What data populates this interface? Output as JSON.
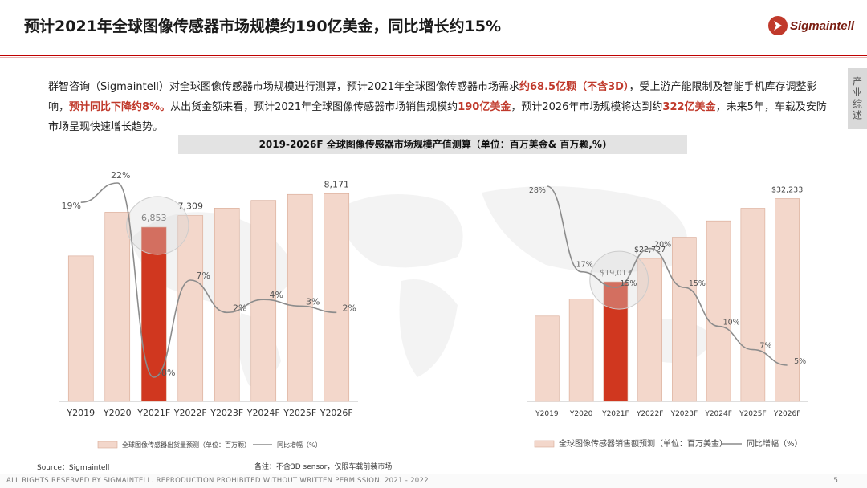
{
  "header": {
    "title": "预计2021年全球图像传感器市场规模约190亿美金，同比增长约15%",
    "logo_text": "Sigmaintell",
    "side_tab": "产业综述"
  },
  "intro": {
    "p1": "群智咨询（Sigmaintell）对全球图像传感器市场规模进行测算，预计2021年全球图像传感器市场需求",
    "h1": "约68.5亿颗（不含3D）",
    "p2": "，受上游产能限制及智能手机库存调整影响，",
    "h2": "预计同比下降约8%。",
    "p3": "从出货金额来看，预计2021年全球图像传感器市场销售规模约",
    "h3": "190亿美金",
    "p4": "，预计2026年市场规模将达到约",
    "h4": "322亿美金",
    "p5": "，未来5年，车载及安防市场呈现快速增长趋势。"
  },
  "chart_section_title": "2019-2026F 全球图像传感器市场规模产值测算（单位：百万美金& 百万颗,%)",
  "chart_data": [
    {
      "type": "bar",
      "categories": [
        "Y2019",
        "Y2020",
        "Y2021F",
        "Y2022F",
        "Y2023F",
        "Y2024F",
        "Y2025F",
        "Y2026F"
      ],
      "series": [
        {
          "name": "全球图像传感器出货量预测（单位：百万颗）",
          "values": [
            5720,
            7440,
            6853,
            7309,
            7600,
            7905,
            8140,
            8171
          ],
          "color": "#f3d7cb",
          "highlight_index": 2,
          "highlight_color": "#d0371f"
        },
        {
          "name": "同比增幅（%）",
          "type": "line",
          "values": [
            19,
            22,
            -8,
            7,
            2,
            4,
            3,
            2
          ],
          "color": "#8c8c8c"
        }
      ],
      "bar_labels": [
        "",
        "",
        "6,853",
        "7,309",
        "",
        "",
        "",
        "8,171"
      ],
      "line_labels": [
        "19%",
        "22%",
        "-8%",
        "7%",
        "2%",
        "4%",
        "3%",
        "2%"
      ],
      "ylim": [
        0,
        9000
      ]
    },
    {
      "type": "bar",
      "categories": [
        "Y2019",
        "Y2020",
        "Y2021F",
        "Y2022F",
        "Y2023F",
        "Y2024F",
        "Y2025F",
        "Y2026F"
      ],
      "series": [
        {
          "name": "全球图像传感器销售额预测（单位：百万美金）",
          "values": [
            13560,
            16250,
            19013,
            22727,
            26100,
            28700,
            30700,
            32233
          ],
          "color": "#f3d7cb",
          "highlight_index": 2,
          "highlight_color": "#d0371f"
        },
        {
          "name": "同比增幅（%）",
          "type": "line",
          "values": [
            28,
            17,
            15,
            20,
            15,
            10,
            7,
            5
          ],
          "color": "#8c8c8c"
        }
      ],
      "bar_labels": [
        "",
        "",
        "$19,013",
        "$22,727",
        "",
        "",
        "",
        "$32,233"
      ],
      "line_labels": [
        "28%",
        "17%",
        "15%",
        "20%",
        "15%",
        "10%",
        "7%",
        "5%"
      ],
      "ylim": [
        0,
        36000
      ]
    }
  ],
  "footer": {
    "source": "Source：Sigmaintell",
    "note": "备注：不含3D sensor，仅限车载前装市场",
    "copyright": "ALL RIGHTS RESERVED BY SIGMAINTELL. REPRODUCTION PROHIBITED WITHOUT WRITTEN PERMISSION. 2021 - 2022",
    "page": "5"
  }
}
